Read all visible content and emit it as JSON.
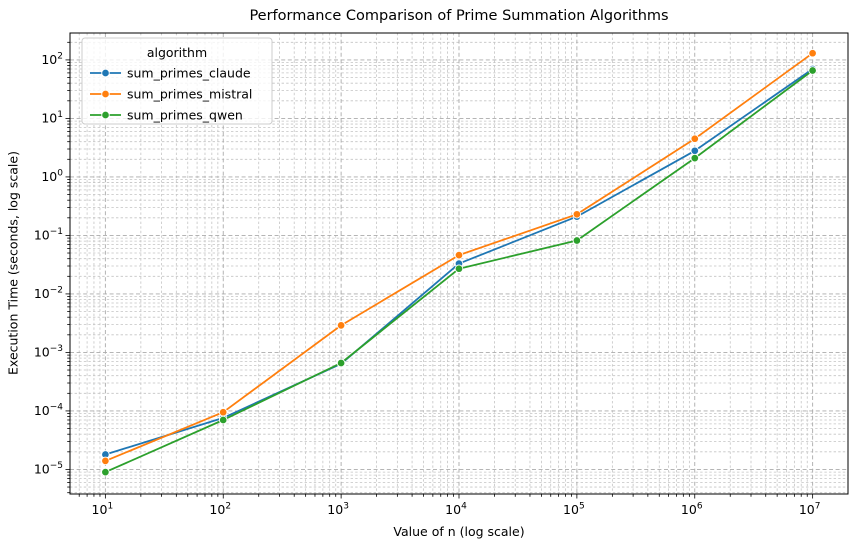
{
  "chart_data": {
    "type": "line",
    "title": "Performance Comparison of Prime Summation Algorithms",
    "xlabel": "Value of n (log scale)",
    "ylabel": "Execution Time (seconds, log scale)",
    "xscale": "log",
    "yscale": "log",
    "x": [
      10,
      100,
      1000,
      10000,
      100000,
      1000000,
      10000000
    ],
    "series": [
      {
        "name": "sum_primes_claude",
        "color": "#1f77b4",
        "values": [
          1.8e-05,
          7.6e-05,
          0.00064,
          0.033,
          0.21,
          2.8,
          70
        ]
      },
      {
        "name": "sum_primes_mistral",
        "color": "#ff7f0e",
        "values": [
          1.4e-05,
          9.5e-05,
          0.0029,
          0.046,
          0.23,
          4.5,
          130
        ]
      },
      {
        "name": "sum_primes_qwen",
        "color": "#2ca02c",
        "values": [
          9e-06,
          7e-05,
          0.00066,
          0.027,
          0.082,
          2.1,
          66
        ]
      }
    ],
    "legend": {
      "title": "algorithm",
      "position": "upper left"
    },
    "x_ticks": [
      "10^1",
      "10^2",
      "10^3",
      "10^4",
      "10^5",
      "10^6",
      "10^7"
    ],
    "y_ticks": [
      "10^-5",
      "10^-4",
      "10^-3",
      "10^-2",
      "10^-1",
      "10^0",
      "10^1",
      "10^2"
    ],
    "xlim_log": [
      0.7,
      7.3
    ],
    "ylim_log": [
      -5.42,
      2.46
    ],
    "grid": {
      "major": true,
      "minor": true,
      "style": "dashed",
      "major_color": "#ababab",
      "minor_color": "#c4c4c4"
    },
    "colors": {
      "spine": "#000000",
      "tick_label": "#000000",
      "legend_border": "#cccccc",
      "legend_fill": "rgba(255,255,255,0.8)"
    }
  }
}
